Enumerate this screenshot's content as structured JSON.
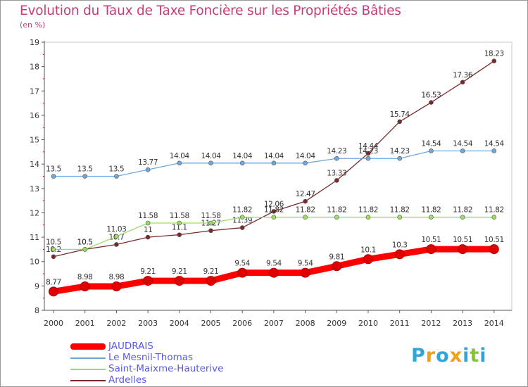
{
  "title": "Evolution du Taux de Taxe Foncière sur les Propriétés Bâties",
  "unit_label": "(en %)",
  "brand": {
    "letters": [
      "P",
      "r",
      "o",
      "x",
      "i",
      "t",
      "i"
    ],
    "colors": [
      "#2ea6d8",
      "#f0a020",
      "#2ea6d8",
      "#f0a020",
      "#2ea6d8",
      "#88c040",
      "#2ea6d8"
    ]
  },
  "chart_data": {
    "type": "line",
    "title": "Evolution du Taux de Taxe Foncière sur les Propriétés Bâties",
    "ylabel": "(en %)",
    "xlabel": "",
    "ylim": [
      8,
      19
    ],
    "y_ticks": [
      "8",
      "9",
      "10",
      "11",
      "12",
      "13",
      "14",
      "15",
      "16",
      "17",
      "18",
      "19"
    ],
    "categories": [
      "2000",
      "2001",
      "2002",
      "2003",
      "2004",
      "2005",
      "2006",
      "2007",
      "2008",
      "2009",
      "2010",
      "2011",
      "2012",
      "2013",
      "2014"
    ],
    "series": [
      {
        "name": "Ardelles",
        "color": "#7a2a2a",
        "values": [
          10.2,
          10.5,
          10.7,
          11,
          11.1,
          11.27,
          11.39,
          12.06,
          12.47,
          13.33,
          14.44,
          15.74,
          16.53,
          17.36,
          18.23
        ],
        "labels": [
          "10.2",
          "10.5",
          "10.7",
          "11",
          "11.1",
          "11.27",
          "11.39",
          "12.06",
          "12.47",
          "13.33",
          "14.44",
          "15.74",
          "16.53",
          "17.36",
          "18.23"
        ]
      },
      {
        "name": "Saint-Maixme-Hauterive",
        "color": "#99dd66",
        "values": [
          10.5,
          10.5,
          11.03,
          11.58,
          11.58,
          11.58,
          11.82,
          11.82,
          11.82,
          11.82,
          11.82,
          11.82,
          11.82,
          11.82,
          11.82
        ],
        "labels": [
          "10.5",
          "10.5",
          "11.03",
          "11.58",
          "11.58",
          "11.58",
          "11.82",
          "11.82",
          "11.82",
          "11.82",
          "11.82",
          "11.82",
          "11.82",
          "11.82",
          "11.82"
        ]
      },
      {
        "name": "Le Mesnil-Thomas",
        "color": "#6fa8dc",
        "values": [
          13.5,
          13.5,
          13.5,
          13.77,
          14.04,
          14.04,
          14.04,
          14.04,
          14.04,
          14.23,
          14.23,
          14.23,
          14.54,
          14.54,
          14.54
        ],
        "labels": [
          "13.5",
          "13.5",
          "13.5",
          "13.77",
          "14.04",
          "14.04",
          "14.04",
          "14.04",
          "14.04",
          "14.23",
          "14.23",
          "14.23",
          "14.54",
          "14.54",
          "14.54"
        ]
      },
      {
        "name": "JAUDRAIS",
        "color": "#ff0000",
        "values": [
          8.77,
          8.98,
          8.98,
          9.21,
          9.21,
          9.21,
          9.54,
          9.54,
          9.54,
          9.81,
          10.1,
          10.3,
          10.51,
          10.51,
          10.51
        ],
        "labels": [
          "8.77",
          "8.98",
          "8.98",
          "9.21",
          "9.21",
          "9.21",
          "9.54",
          "9.54",
          "9.54",
          "9.81",
          "10.1",
          "10.3",
          "10.51",
          "10.51",
          "10.51"
        ]
      }
    ],
    "legend": [
      {
        "name": "JAUDRAIS",
        "color": "#ff0000",
        "thick": true
      },
      {
        "name": "Le Mesnil-Thomas",
        "color": "#6fa8dc",
        "thick": false
      },
      {
        "name": "Saint-Maixme-Hauterive",
        "color": "#99dd66",
        "thick": false
      },
      {
        "name": "Ardelles",
        "color": "#7a2a2a",
        "thick": false
      }
    ],
    "legend_position": "bottom-left",
    "grid": false
  }
}
